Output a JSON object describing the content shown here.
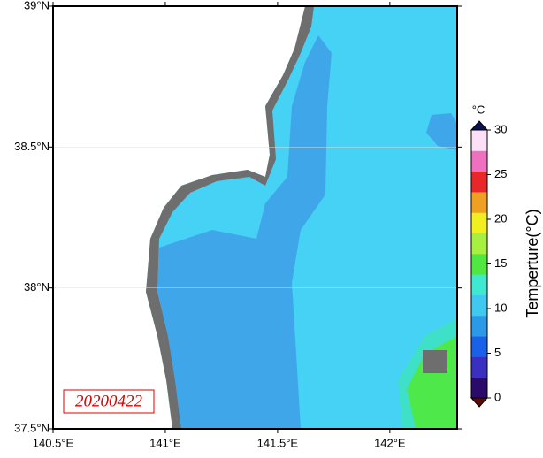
{
  "map": {
    "date": "20200422",
    "lonlim": [
      140.5,
      142.3
    ],
    "latlim": [
      37.5,
      39
    ],
    "xticks": [
      {
        "value": 140.5,
        "label": "140.5°E"
      },
      {
        "value": 141,
        "label": "141°E"
      },
      {
        "value": 141.5,
        "label": "141.5°E"
      },
      {
        "value": 142,
        "label": "142°E"
      }
    ],
    "yticks": [
      {
        "value": 37.5,
        "label": "37.5°N"
      },
      {
        "value": 38,
        "label": "38°N"
      },
      {
        "value": 38.5,
        "label": "38.5°N"
      },
      {
        "value": 39,
        "label": "39°N"
      }
    ]
  },
  "colorbar": {
    "unit": "°C",
    "label": "Temperture(°C)",
    "lim": [
      0,
      30
    ],
    "ticks": [
      0,
      5,
      10,
      15,
      20,
      25,
      30
    ],
    "colors": [
      "#2a0a6a",
      "#3a2fc0",
      "#1a60e8",
      "#2a9ae8",
      "#3fc8f0",
      "#3fe8d0",
      "#50e840",
      "#a8f040",
      "#f0f020",
      "#f0a020",
      "#e82828",
      "#f070c0",
      "#fce0f8"
    ]
  }
}
